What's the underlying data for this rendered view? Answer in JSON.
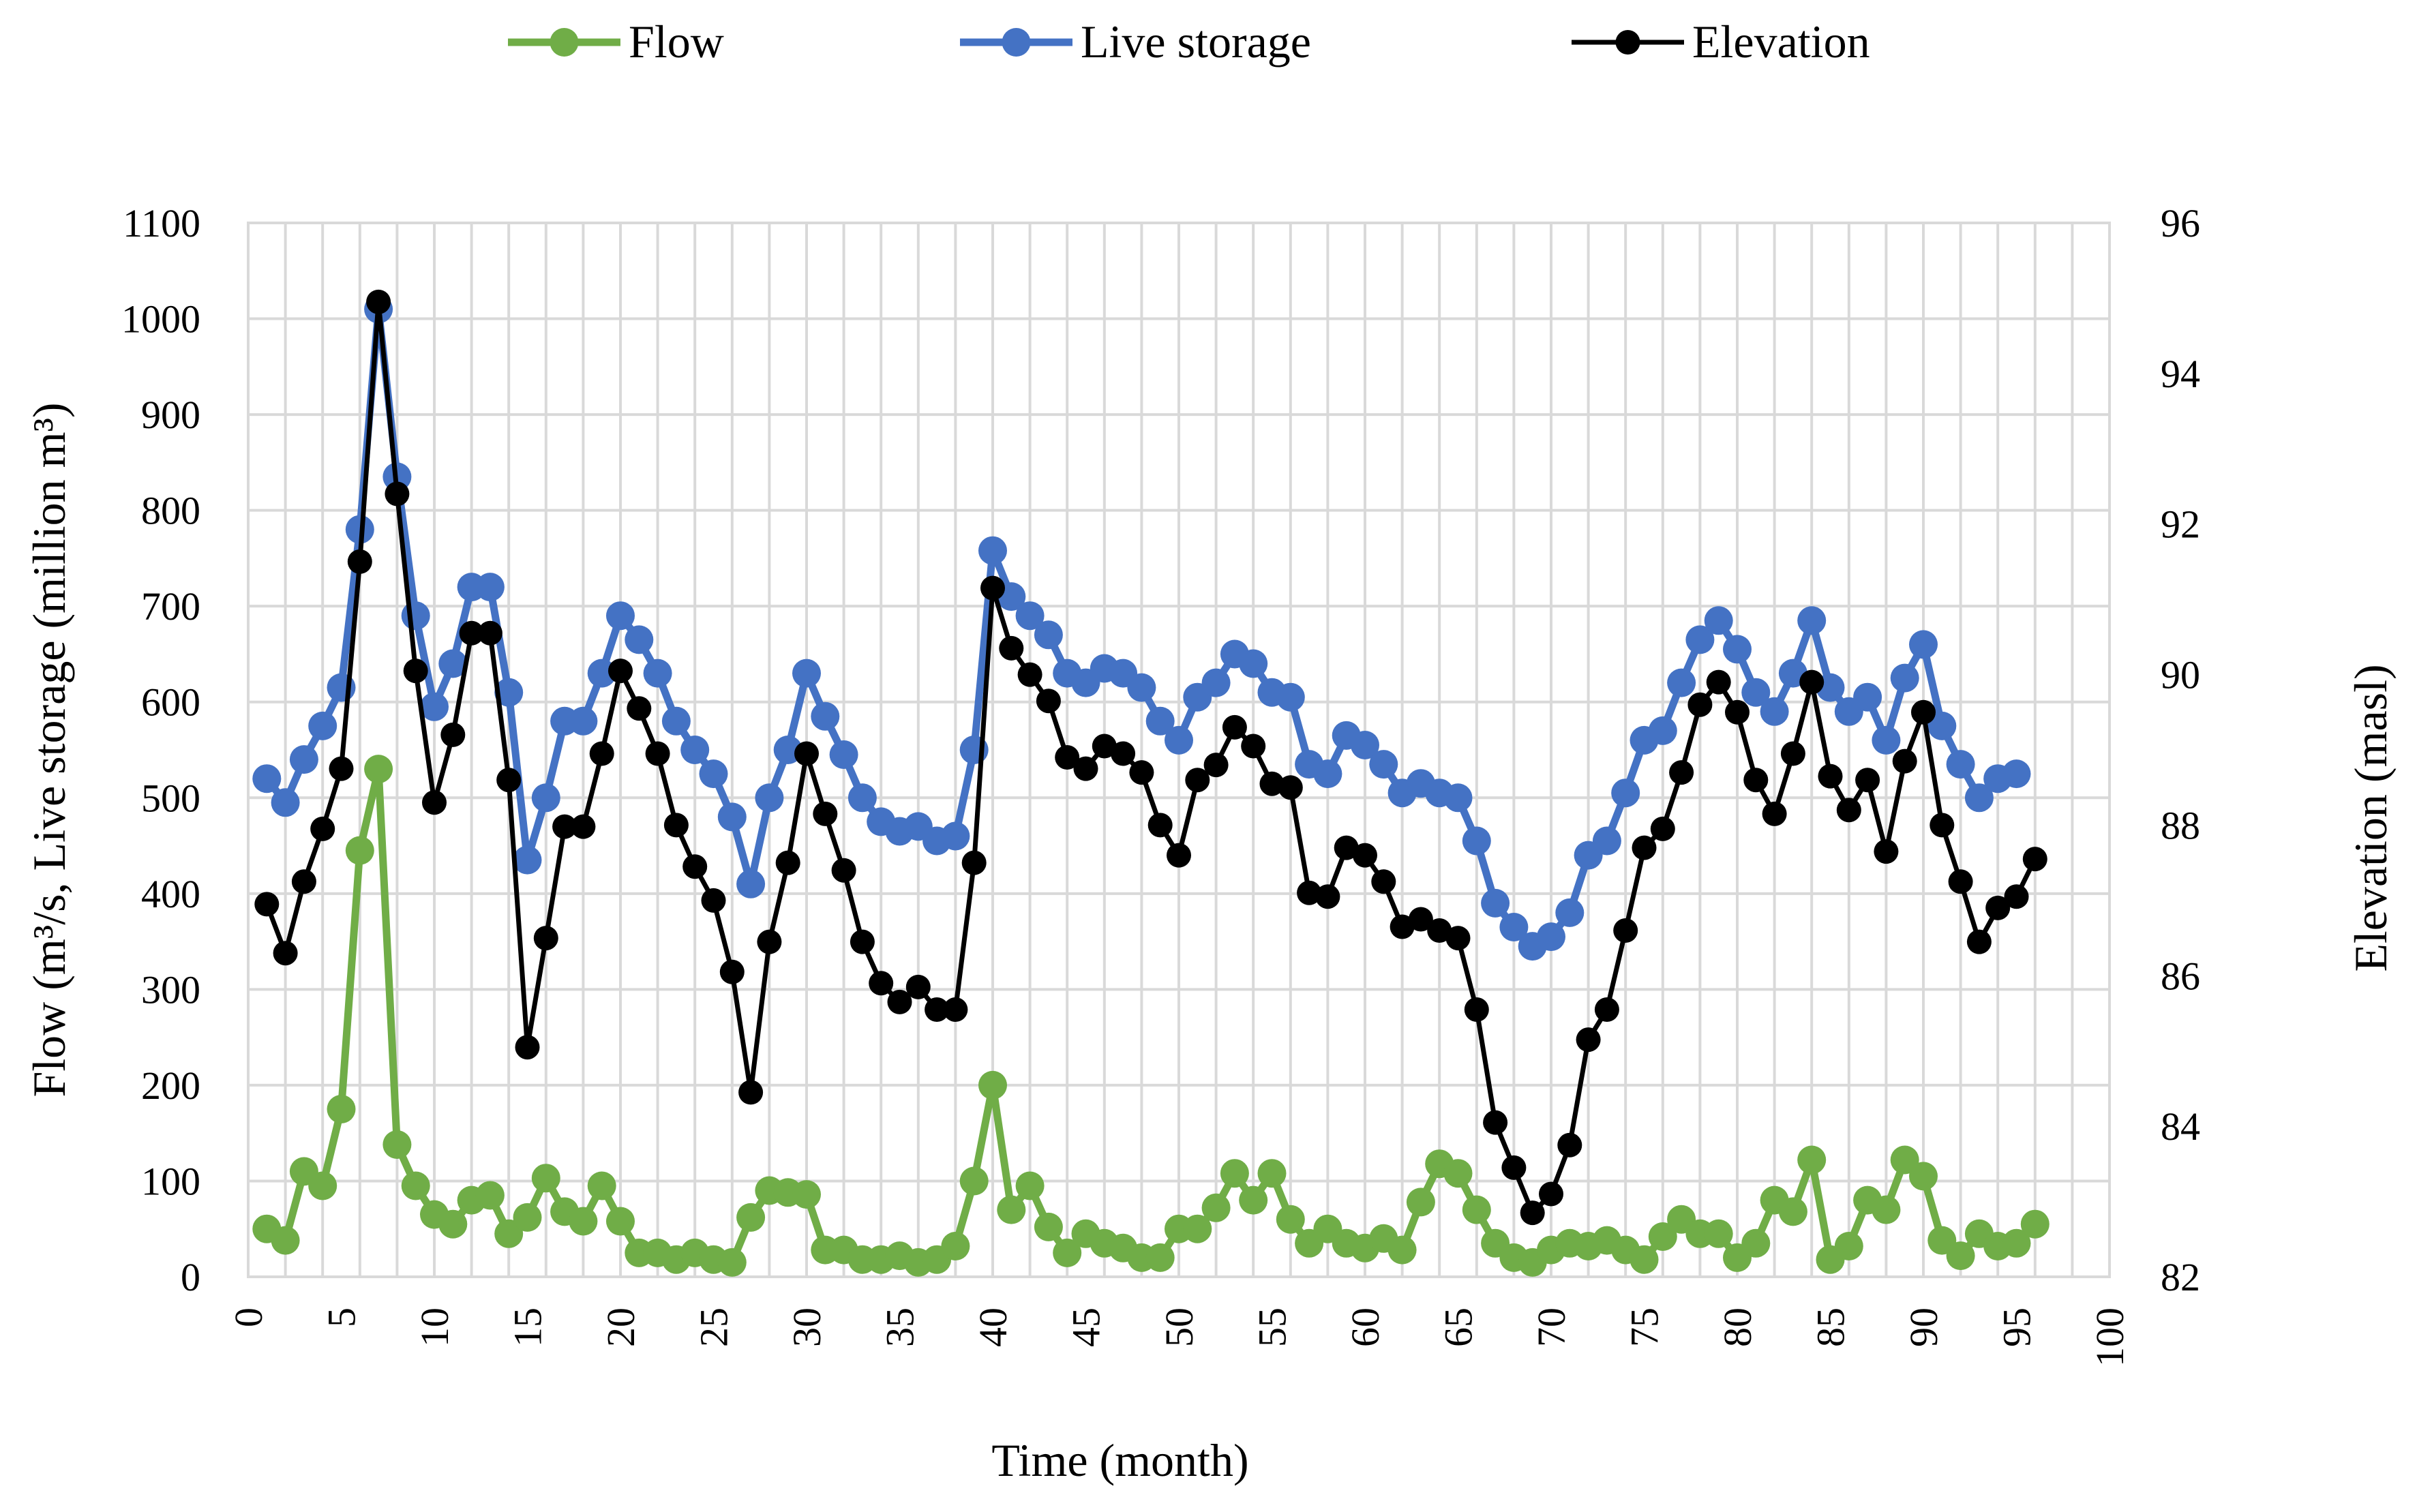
{
  "chart_data": {
    "type": "line",
    "title": "",
    "xlabel": "Time (month)",
    "ylabel_left": "Flow (m³/s, Live storage (million m³)",
    "ylabel_right": "Elevation (masl)",
    "xlim": [
      0,
      100
    ],
    "x_ticks": [
      "0",
      "5",
      "10",
      "15",
      "20",
      "25",
      "30",
      "35",
      "40",
      "45",
      "50",
      "55",
      "60",
      "65",
      "70",
      "75",
      "80",
      "85",
      "90",
      "95",
      "100"
    ],
    "ylim_left": [
      0,
      1100
    ],
    "y_ticks_left": [
      "0",
      "100",
      "200",
      "300",
      "400",
      "500",
      "600",
      "700",
      "800",
      "900",
      "1000",
      "1100"
    ],
    "ylim_right": [
      82,
      96
    ],
    "y_ticks_right": [
      "82",
      "84",
      "86",
      "88",
      "90",
      "92",
      "94",
      "96"
    ],
    "grid": true,
    "legend_position": "top-center",
    "legend": [
      "Flow",
      "Live storage",
      "Elevation"
    ],
    "x": [
      1,
      2,
      3,
      4,
      5,
      6,
      7,
      8,
      9,
      10,
      11,
      12,
      13,
      14,
      15,
      16,
      17,
      18,
      19,
      20,
      21,
      22,
      23,
      24,
      25,
      26,
      27,
      28,
      29,
      30,
      31,
      32,
      33,
      34,
      35,
      36,
      37,
      38,
      39,
      40,
      41,
      42,
      43,
      44,
      45,
      46,
      47,
      48,
      49,
      50,
      51,
      52,
      53,
      54,
      55,
      56,
      57,
      58,
      59,
      60,
      61,
      62,
      63,
      64,
      65,
      66,
      67,
      68,
      69,
      70,
      71,
      72,
      73,
      74,
      75,
      76,
      77,
      78,
      79,
      80,
      81,
      82,
      83,
      84,
      85,
      86,
      87,
      88,
      89,
      90,
      91,
      92,
      93,
      94,
      95,
      96
    ],
    "series": [
      {
        "name": "Flow",
        "axis": "left",
        "color": "#70ad47",
        "values": [
          50,
          38,
          110,
          95,
          175,
          445,
          530,
          138,
          95,
          65,
          55,
          80,
          85,
          45,
          62,
          103,
          68,
          58,
          95,
          58,
          25,
          25,
          18,
          25,
          18,
          15,
          62,
          90,
          88,
          86,
          28,
          28,
          18,
          18,
          22,
          15,
          18,
          32,
          100,
          200,
          70,
          95,
          52,
          25,
          45,
          35,
          30,
          20,
          20,
          50,
          50,
          72,
          108,
          80,
          108,
          60,
          35,
          50,
          35,
          30,
          40,
          28,
          78,
          118,
          108,
          70,
          35,
          20,
          15,
          28,
          35,
          32,
          38,
          28,
          18,
          42,
          60,
          45,
          45,
          20,
          35,
          80,
          68,
          122,
          18,
          32,
          80,
          70,
          122,
          105,
          38,
          22,
          45,
          32,
          35,
          55
        ]
      },
      {
        "name": "Live storage",
        "axis": "left",
        "color": "#4472c4",
        "values": [
          520,
          495,
          540,
          575,
          615,
          780,
          1010,
          835,
          690,
          595,
          640,
          720,
          720,
          610,
          435,
          500,
          580,
          580,
          630,
          690,
          665,
          630,
          580,
          550,
          525,
          480,
          410,
          500,
          550,
          630,
          585,
          545,
          500,
          475,
          465,
          470,
          455,
          460,
          550,
          758,
          710,
          690,
          670,
          630,
          620,
          635,
          630,
          615,
          580,
          560,
          605,
          620,
          650,
          640,
          610,
          605,
          535,
          525,
          565,
          555,
          535,
          505,
          515,
          505,
          500,
          455,
          390,
          365,
          345,
          355,
          380,
          440,
          455,
          505,
          560,
          570,
          620,
          665,
          685,
          655,
          610,
          590,
          630,
          685,
          615,
          590,
          605,
          560,
          625,
          660,
          575,
          535,
          500,
          520,
          525,
          null
        ]
      },
      {
        "name": "Elevation",
        "axis": "right",
        "color": "#000000",
        "values": [
          86.95,
          86.3,
          87.25,
          87.95,
          88.75,
          91.5,
          94.95,
          92.4,
          90.05,
          88.3,
          89.2,
          90.55,
          90.55,
          88.6,
          85.05,
          86.5,
          87.98,
          87.98,
          88.95,
          90.05,
          89.55,
          88.95,
          88.0,
          87.45,
          87.0,
          86.05,
          84.45,
          86.45,
          87.5,
          88.95,
          88.15,
          87.4,
          86.45,
          85.9,
          85.65,
          85.85,
          85.55,
          85.55,
          87.5,
          91.15,
          90.35,
          90.0,
          89.65,
          88.9,
          88.75,
          89.05,
          88.95,
          88.7,
          88.0,
          87.6,
          88.6,
          88.8,
          89.3,
          89.05,
          88.55,
          88.5,
          87.1,
          87.05,
          87.7,
          87.6,
          87.25,
          86.65,
          86.75,
          86.6,
          86.5,
          85.55,
          84.05,
          83.45,
          82.85,
          83.1,
          83.75,
          85.15,
          85.55,
          86.6,
          87.7,
          87.95,
          88.7,
          89.6,
          89.9,
          89.5,
          88.6,
          88.15,
          88.95,
          89.9,
          88.65,
          88.2,
          88.6,
          87.65,
          88.85,
          89.5,
          88.0,
          87.25,
          86.45,
          86.9,
          87.05,
          87.55
        ]
      }
    ]
  }
}
